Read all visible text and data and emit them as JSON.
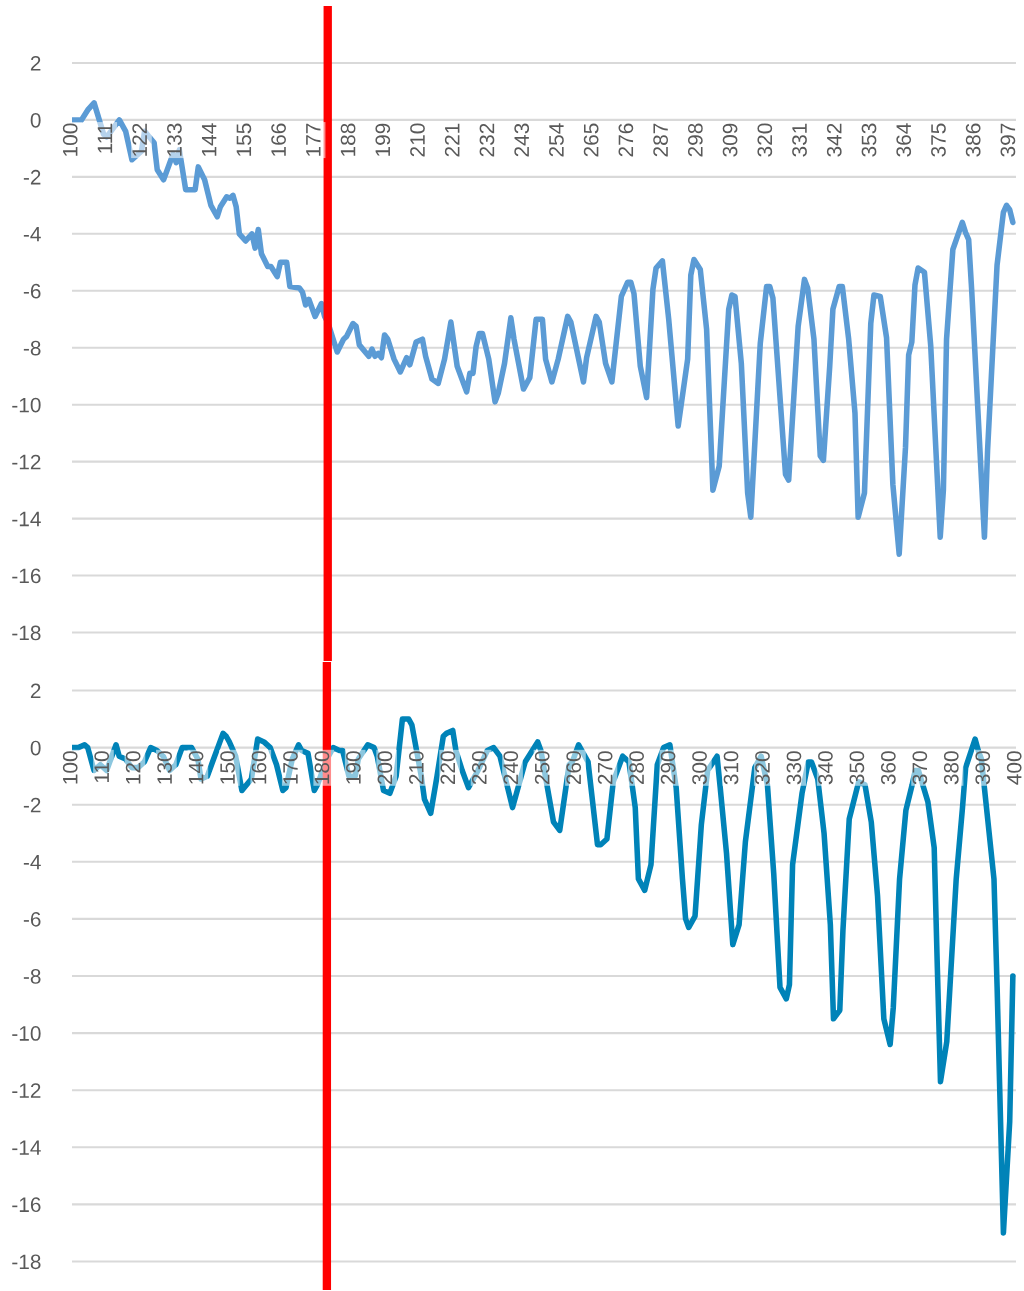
{
  "chart_data": [
    {
      "type": "line",
      "grid": "y",
      "marker": "none",
      "line_style": "solid",
      "xlim": [
        100,
        399
      ],
      "xticks": [
        100,
        111,
        122,
        133,
        144,
        155,
        166,
        177,
        188,
        199,
        210,
        221,
        232,
        243,
        254,
        265,
        276,
        287,
        298,
        309,
        320,
        331,
        342,
        353,
        364,
        375,
        386,
        397
      ],
      "ylim": [
        -19,
        4
      ],
      "yticks": [
        -18,
        -16,
        -14,
        -12,
        -10,
        -8,
        -6,
        -4,
        -2,
        0,
        2
      ],
      "ref_lines": [
        {
          "axis": "x",
          "value": 181,
          "color": "#ff0000"
        }
      ],
      "series": [
        {
          "color": "#5b9bd5",
          "x": [
            100,
            103,
            105,
            107,
            110,
            111,
            115,
            117,
            119,
            122,
            123,
            126,
            127,
            129,
            130,
            132,
            133,
            134,
            135,
            136,
            138,
            139,
            140,
            142,
            144,
            146,
            147,
            149,
            150,
            151,
            152,
            153,
            155,
            157,
            158,
            159,
            160,
            162,
            163,
            165,
            166,
            168,
            169,
            172,
            173,
            174,
            175,
            177,
            179,
            180,
            181,
            184,
            186,
            187,
            189,
            190,
            191,
            194,
            195,
            196,
            197,
            198,
            199,
            200,
            202,
            204,
            206,
            207,
            209,
            211,
            212,
            214,
            216,
            218,
            220,
            222,
            225,
            226,
            227,
            228,
            229,
            230,
            232,
            234,
            235,
            237,
            239,
            240,
            243,
            245,
            247,
            249,
            250,
            252,
            254,
            257,
            258,
            262,
            263,
            266,
            267,
            269,
            271,
            274,
            276,
            277,
            278,
            280,
            282,
            284,
            285,
            287,
            289,
            292,
            295,
            296,
            297,
            299,
            301,
            303,
            305,
            308,
            309,
            310,
            312,
            314,
            315,
            318,
            320,
            321,
            322,
            326,
            327,
            330,
            332,
            333,
            335,
            337,
            338,
            340,
            341,
            343,
            344,
            346,
            348,
            349,
            351,
            353,
            354,
            356,
            358,
            360,
            362,
            364,
            365,
            366,
            367,
            368,
            370,
            372,
            375,
            376,
            377,
            379,
            382,
            383,
            384,
            385,
            389,
            390,
            393,
            395,
            396,
            397,
            398
          ],
          "values": [
            0,
            0,
            0.35,
            0.6,
            -0.5,
            -0.6,
            0,
            -0.4,
            -1.4,
            -1.1,
            -0.4,
            -0.8,
            -1.75,
            -2.1,
            -1.8,
            -1.2,
            -1.5,
            -1.05,
            -1.75,
            -2.45,
            -2.45,
            -2.45,
            -1.65,
            -2.1,
            -3.0,
            -3.4,
            -3.05,
            -2.7,
            -2.75,
            -2.65,
            -3.05,
            -4.0,
            -4.25,
            -4.0,
            -4.5,
            -3.85,
            -4.7,
            -5.15,
            -5.15,
            -5.5,
            -5.0,
            -5.0,
            -5.85,
            -5.9,
            -6.05,
            -6.5,
            -6.3,
            -6.9,
            -6.45,
            -6.9,
            -7.1,
            -8.15,
            -7.7,
            -7.6,
            -7.15,
            -7.25,
            -7.9,
            -8.3,
            -8.05,
            -8.3,
            -8.2,
            -8.35,
            -7.55,
            -7.7,
            -8.4,
            -8.85,
            -8.35,
            -8.6,
            -7.8,
            -7.7,
            -8.3,
            -9.1,
            -9.25,
            -8.4,
            -7.1,
            -8.65,
            -9.55,
            -8.9,
            -8.9,
            -7.95,
            -7.5,
            -7.5,
            -8.4,
            -9.9,
            -9.6,
            -8.55,
            -6.95,
            -7.7,
            -9.45,
            -9.05,
            -7.0,
            -7.0,
            -8.4,
            -9.2,
            -8.4,
            -6.9,
            -7.1,
            -9.2,
            -8.35,
            -6.9,
            -7.1,
            -8.55,
            -9.2,
            -6.2,
            -5.7,
            -5.7,
            -6.1,
            -8.65,
            -9.75,
            -5.95,
            -5.2,
            -4.95,
            -7.0,
            -10.75,
            -8.4,
            -5.45,
            -4.9,
            -5.25,
            -7.35,
            -13.0,
            -12.15,
            -6.65,
            -6.15,
            -6.2,
            -8.55,
            -13.1,
            -13.95,
            -7.85,
            -5.85,
            -5.85,
            -6.25,
            -12.45,
            -12.65,
            -7.25,
            -5.6,
            -5.9,
            -7.7,
            -11.8,
            -11.95,
            -8.65,
            -6.65,
            -5.85,
            -5.85,
            -7.7,
            -10.3,
            -13.95,
            -13.1,
            -7.15,
            -6.15,
            -6.2,
            -7.65,
            -12.8,
            -15.25,
            -11.5,
            -8.25,
            -7.8,
            -5.8,
            -5.2,
            -5.35,
            -7.95,
            -14.65,
            -13.0,
            -7.7,
            -4.55,
            -3.6,
            -3.95,
            -4.2,
            -6.05,
            -14.65,
            -11.6,
            -5.1,
            -3.25,
            -3.0,
            -3.15,
            -3.6
          ]
        }
      ]
    },
    {
      "type": "line",
      "grid": "y",
      "marker": "none",
      "line_style": "solid",
      "xlim": [
        100,
        400
      ],
      "xticks": [
        100,
        110,
        120,
        130,
        140,
        150,
        160,
        170,
        180,
        190,
        200,
        210,
        220,
        230,
        240,
        250,
        260,
        270,
        280,
        290,
        300,
        310,
        320,
        330,
        340,
        350,
        360,
        370,
        380,
        390,
        400
      ],
      "ylim": [
        -19,
        3
      ],
      "yticks": [
        -18,
        -16,
        -14,
        -12,
        -10,
        -8,
        -6,
        -4,
        -2,
        0,
        2
      ],
      "ref_lines": [
        {
          "axis": "x",
          "value": 181,
          "color": "#ff0000"
        }
      ],
      "series": [
        {
          "color": "#0083b8",
          "x": [
            100,
            102,
            104,
            105,
            107,
            109,
            111,
            114,
            115,
            117,
            119,
            121,
            123,
            125,
            127,
            129,
            131,
            133,
            135,
            138,
            140,
            141,
            143,
            145,
            148,
            149,
            150,
            152,
            154,
            157,
            158,
            159,
            161,
            163,
            165,
            167,
            168,
            170,
            172,
            173,
            175,
            177,
            178,
            181,
            183,
            185,
            186,
            188,
            190,
            191,
            194,
            196,
            197,
            199,
            201,
            203,
            205,
            207,
            208,
            211,
            212,
            214,
            216,
            218,
            219,
            221,
            222,
            224,
            226,
            229,
            232,
            234,
            236,
            240,
            241,
            244,
            248,
            249,
            253,
            255,
            258,
            259,
            261,
            264,
            267,
            268,
            270,
            272,
            275,
            277,
            279,
            280,
            282,
            284,
            286,
            288,
            290,
            292,
            294,
            295,
            296,
            298,
            300,
            302,
            305,
            306,
            308,
            310,
            312,
            314,
            317,
            319,
            321,
            323,
            325,
            327,
            328,
            329,
            332,
            334,
            335,
            337,
            339,
            341,
            342,
            344,
            345,
            347,
            350,
            352,
            354,
            356,
            358,
            360,
            361,
            363,
            365,
            367,
            368,
            369,
            372,
            374,
            375,
            376,
            378,
            381,
            383,
            384,
            387,
            388,
            389,
            391,
            393,
            394,
            396,
            398,
            399
          ],
          "values": [
            0,
            0,
            0.1,
            0,
            -0.8,
            -0.6,
            -0.8,
            0.1,
            -0.3,
            -0.4,
            -0.7,
            -0.7,
            -0.5,
            0,
            -0.1,
            -0.3,
            -0.8,
            -0.6,
            0,
            0,
            -0.4,
            -1.1,
            -1.0,
            -0.4,
            0.5,
            0.4,
            0.2,
            -0.3,
            -1.5,
            -1.1,
            -0.4,
            0.3,
            0.2,
            0,
            -0.6,
            -1.5,
            -1.4,
            -0.4,
            0.1,
            -0.1,
            -0.2,
            -1.5,
            -1.3,
            -0.4,
            0,
            -0.1,
            -0.1,
            -1.0,
            -1.0,
            -0.4,
            0.1,
            0,
            -0.3,
            -1.5,
            -1.6,
            -1.0,
            1.0,
            1.0,
            0.8,
            -1.0,
            -1.8,
            -2.3,
            -1.0,
            0.4,
            0.5,
            0.6,
            -0.1,
            -0.8,
            -1.4,
            -0.8,
            -0.1,
            0,
            -0.3,
            -2.1,
            -1.7,
            -0.5,
            0.2,
            -0.1,
            -2.6,
            -2.9,
            -0.6,
            -0.5,
            0.1,
            -0.5,
            -3.4,
            -3.4,
            -3.2,
            -1.2,
            -0.3,
            -0.5,
            -2.1,
            -4.6,
            -5.0,
            -4.1,
            -0.6,
            0,
            0.1,
            -1.4,
            -4.6,
            -6.0,
            -6.3,
            -5.9,
            -2.7,
            -0.8,
            -0.3,
            -1.4,
            -3.7,
            -6.9,
            -6.2,
            -3.3,
            -0.7,
            -0.3,
            -1.3,
            -4.4,
            -8.4,
            -8.8,
            -8.3,
            -4.1,
            -1.6,
            -0.5,
            -0.5,
            -1.1,
            -3.0,
            -6.2,
            -9.5,
            -9.2,
            -6.4,
            -2.5,
            -1.2,
            -1.3,
            -2.6,
            -5.2,
            -9.5,
            -10.4,
            -9.1,
            -4.6,
            -2.2,
            -1.3,
            -0.8,
            -0.8,
            -1.9,
            -3.5,
            -7.7,
            -11.7,
            -10.3,
            -4.6,
            -2.1,
            -0.7,
            0.3,
            -0.1,
            -0.4,
            -2.5,
            -4.6,
            -8.4,
            -17.0,
            -13.1,
            -8.0
          ]
        }
      ]
    }
  ]
}
